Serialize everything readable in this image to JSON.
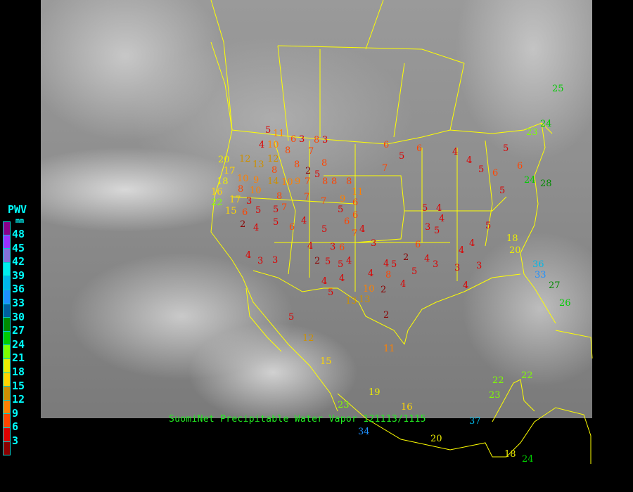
{
  "caption": "SuomiNet Precipitable Water Vapor 121113/1115",
  "legend": {
    "title": "PWV",
    "unit": "mm",
    "labels": [
      "48",
      "45",
      "42",
      "39",
      "36",
      "33",
      "30",
      "27",
      "24",
      "21",
      "18",
      "15",
      "12",
      "9",
      "6",
      "3"
    ],
    "colors": [
      "#8b008b",
      "#9b30ff",
      "#8470d8",
      "#00eeee",
      "#00b8e8",
      "#1e90ff",
      "#005f9f",
      "#008b00",
      "#00cd00",
      "#7fff00",
      "#eeee00",
      "#ffd700",
      "#cd9000",
      "#ff8000",
      "#ff4500",
      "#dd0000",
      "#8b0000"
    ]
  },
  "map": {
    "border_color": "#ffff00"
  },
  "stations": [
    10,
    11,
    6,
    8,
    8,
    7,
    12,
    13,
    12,
    10,
    9,
    8,
    8,
    8,
    8,
    17,
    10,
    14,
    10,
    9,
    7,
    2,
    5,
    8,
    8,
    20,
    18,
    8,
    11,
    16,
    17,
    3,
    8,
    7,
    9,
    6,
    5,
    6,
    22,
    15,
    6,
    5,
    5,
    7,
    7,
    4,
    6,
    5,
    2,
    4,
    5,
    6,
    4,
    7,
    4,
    6,
    5,
    3,
    5,
    4,
    4,
    5,
    4,
    3,
    2,
    3,
    3,
    4,
    2,
    2,
    5,
    4,
    4,
    5,
    6,
    4,
    3,
    5,
    3,
    4,
    5,
    4,
    4,
    10,
    13,
    13,
    5,
    8,
    2,
    11,
    19,
    16,
    12,
    15,
    23,
    34,
    37,
    20,
    18,
    24,
    22,
    22,
    23,
    36,
    33,
    27,
    26,
    20,
    18,
    28,
    24,
    25,
    24,
    23,
    6,
    5,
    6,
    7,
    4,
    4,
    5,
    6,
    5,
    5,
    4,
    4,
    3,
    3,
    4,
    6,
    5,
    4,
    5,
    3,
    3
  ]
}
